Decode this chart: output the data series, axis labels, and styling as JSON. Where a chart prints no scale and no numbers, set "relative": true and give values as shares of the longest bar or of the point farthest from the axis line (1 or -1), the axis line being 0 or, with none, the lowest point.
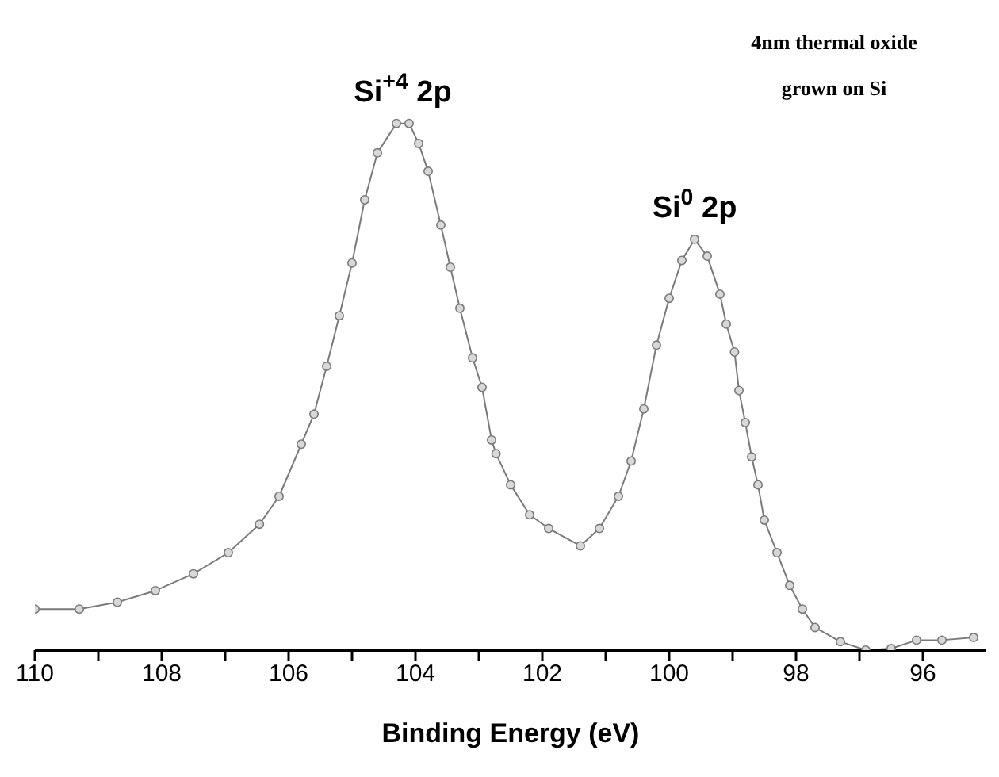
{
  "chart_data": {
    "type": "line",
    "relative": true,
    "xlabel": "Binding Energy (eV)",
    "xlim": [
      110,
      95
    ],
    "xticks": [
      110,
      {
        "value": 109,
        "label": null
      },
      108,
      {
        "value": 107,
        "label": null
      },
      106,
      {
        "value": 105,
        "label": null
      },
      104,
      {
        "value": 103,
        "label": null
      },
      102,
      {
        "value": 101,
        "label": null
      },
      100,
      {
        "value": 99,
        "label": null
      },
      98,
      {
        "value": 97,
        "label": null
      },
      96
    ],
    "marker": "circle",
    "line_style": "solid",
    "grid": false,
    "legend": false,
    "annotations": [
      {
        "text": "Si$^{+4}$ 2p",
        "x": 104.2,
        "y": 1.0
      },
      {
        "text": "Si$^{0}$ 2p",
        "x": 99.6,
        "y": 0.78
      },
      "4nm thermal oxide grown on Si"
    ],
    "series": [
      {
        "color": "#7a7a7a",
        "x": [
          110.0,
          109.3,
          108.7,
          108.1,
          107.5,
          106.95,
          106.46,
          106.15,
          105.8,
          105.6,
          105.4,
          105.2,
          105.0,
          104.8,
          104.6,
          104.3,
          104.1,
          103.95,
          103.8,
          103.6,
          103.45,
          103.3,
          103.1,
          102.95,
          102.8,
          102.73,
          102.5,
          102.2,
          101.9,
          101.4,
          101.1,
          100.8,
          100.6,
          100.4,
          100.2,
          100.0,
          99.8,
          99.6,
          99.4,
          99.2,
          99.1,
          98.97,
          98.9,
          98.8,
          98.7,
          98.6,
          98.5,
          98.3,
          98.1,
          97.9,
          97.7,
          97.3,
          96.9,
          96.5,
          96.1,
          95.7,
          95.2
        ],
        "values": [
          0.078,
          0.078,
          0.091,
          0.113,
          0.145,
          0.185,
          0.239,
          0.292,
          0.391,
          0.448,
          0.539,
          0.635,
          0.735,
          0.855,
          0.944,
          1.0,
          1.0,
          0.962,
          0.909,
          0.807,
          0.727,
          0.649,
          0.555,
          0.499,
          0.399,
          0.373,
          0.314,
          0.257,
          0.231,
          0.198,
          0.231,
          0.292,
          0.359,
          0.458,
          0.579,
          0.668,
          0.74,
          0.78,
          0.748,
          0.676,
          0.619,
          0.566,
          0.493,
          0.432,
          0.367,
          0.314,
          0.247,
          0.185,
          0.123,
          0.078,
          0.043,
          0.016,
          0.0,
          0.003,
          0.019,
          0.019,
          0.024
        ]
      }
    ]
  }
}
